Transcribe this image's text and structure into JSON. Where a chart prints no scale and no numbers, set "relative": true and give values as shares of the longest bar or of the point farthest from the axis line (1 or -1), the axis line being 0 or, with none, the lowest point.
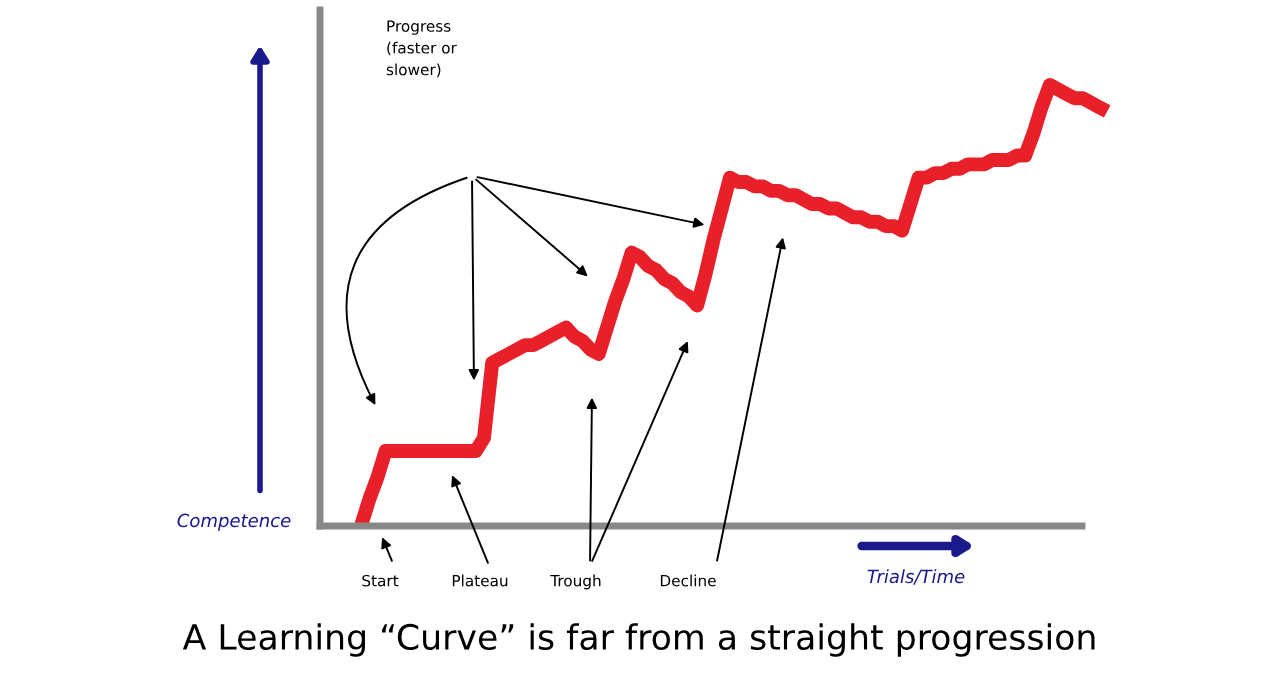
{
  "chart_data": {
    "type": "line",
    "relative": true,
    "title": "A Learning “Curve” is far from a straight progression",
    "xlabel": "Trials/Time",
    "ylabel": "Competence",
    "categories": [
      null,
      null,
      null,
      null,
      null,
      null,
      null,
      null,
      null,
      null,
      null,
      null,
      null,
      null,
      null,
      null,
      null,
      null,
      null,
      null,
      null,
      null,
      null,
      null,
      null,
      null,
      null,
      null,
      null,
      null,
      null,
      null,
      null,
      null,
      null,
      null,
      null,
      null,
      null,
      null,
      null,
      null,
      null,
      null,
      null,
      null,
      null,
      null,
      null,
      null,
      null,
      null,
      null,
      null,
      null,
      null,
      null,
      null,
      null,
      null,
      null,
      null,
      null,
      null,
      null,
      null,
      null,
      null,
      null,
      null,
      null,
      null,
      null,
      null,
      null,
      null,
      null,
      null,
      null,
      null,
      null,
      null,
      null,
      null,
      null,
      null,
      null,
      null,
      null,
      null,
      null,
      null
    ],
    "series": [
      {
        "color": "#e8202a",
        "values": [
          0,
          0.06,
          0.11,
          0.17,
          0.17,
          0.17,
          0.17,
          0.17,
          0.17,
          0.17,
          0.17,
          0.17,
          0.17,
          0.17,
          0.17,
          0.2,
          0.37,
          0.38,
          0.39,
          0.4,
          0.41,
          0.41,
          0.42,
          0.43,
          0.44,
          0.45,
          0.43,
          0.42,
          0.4,
          0.39,
          0.45,
          0.51,
          0.56,
          0.62,
          0.61,
          0.59,
          0.58,
          0.56,
          0.55,
          0.53,
          0.52,
          0.5,
          0.57,
          0.65,
          0.72,
          0.79,
          0.78,
          0.78,
          0.77,
          0.77,
          0.76,
          0.76,
          0.75,
          0.75,
          0.74,
          0.73,
          0.73,
          0.72,
          0.72,
          0.71,
          0.7,
          0.7,
          0.69,
          0.69,
          0.68,
          0.68,
          0.67,
          0.73,
          0.79,
          0.79,
          0.8,
          0.8,
          0.81,
          0.81,
          0.82,
          0.82,
          0.82,
          0.83,
          0.83,
          0.83,
          0.84,
          0.84,
          0.89,
          0.95,
          1.0,
          0.99,
          0.98,
          0.97,
          0.97,
          0.96,
          0.95,
          0.94
        ]
      }
    ],
    "annotations": [
      "Progress\n(faster or\nslower)",
      "Start",
      "Plateau",
      "Trough",
      "Decline"
    ],
    "marker": "none",
    "line_style": "solid"
  }
}
